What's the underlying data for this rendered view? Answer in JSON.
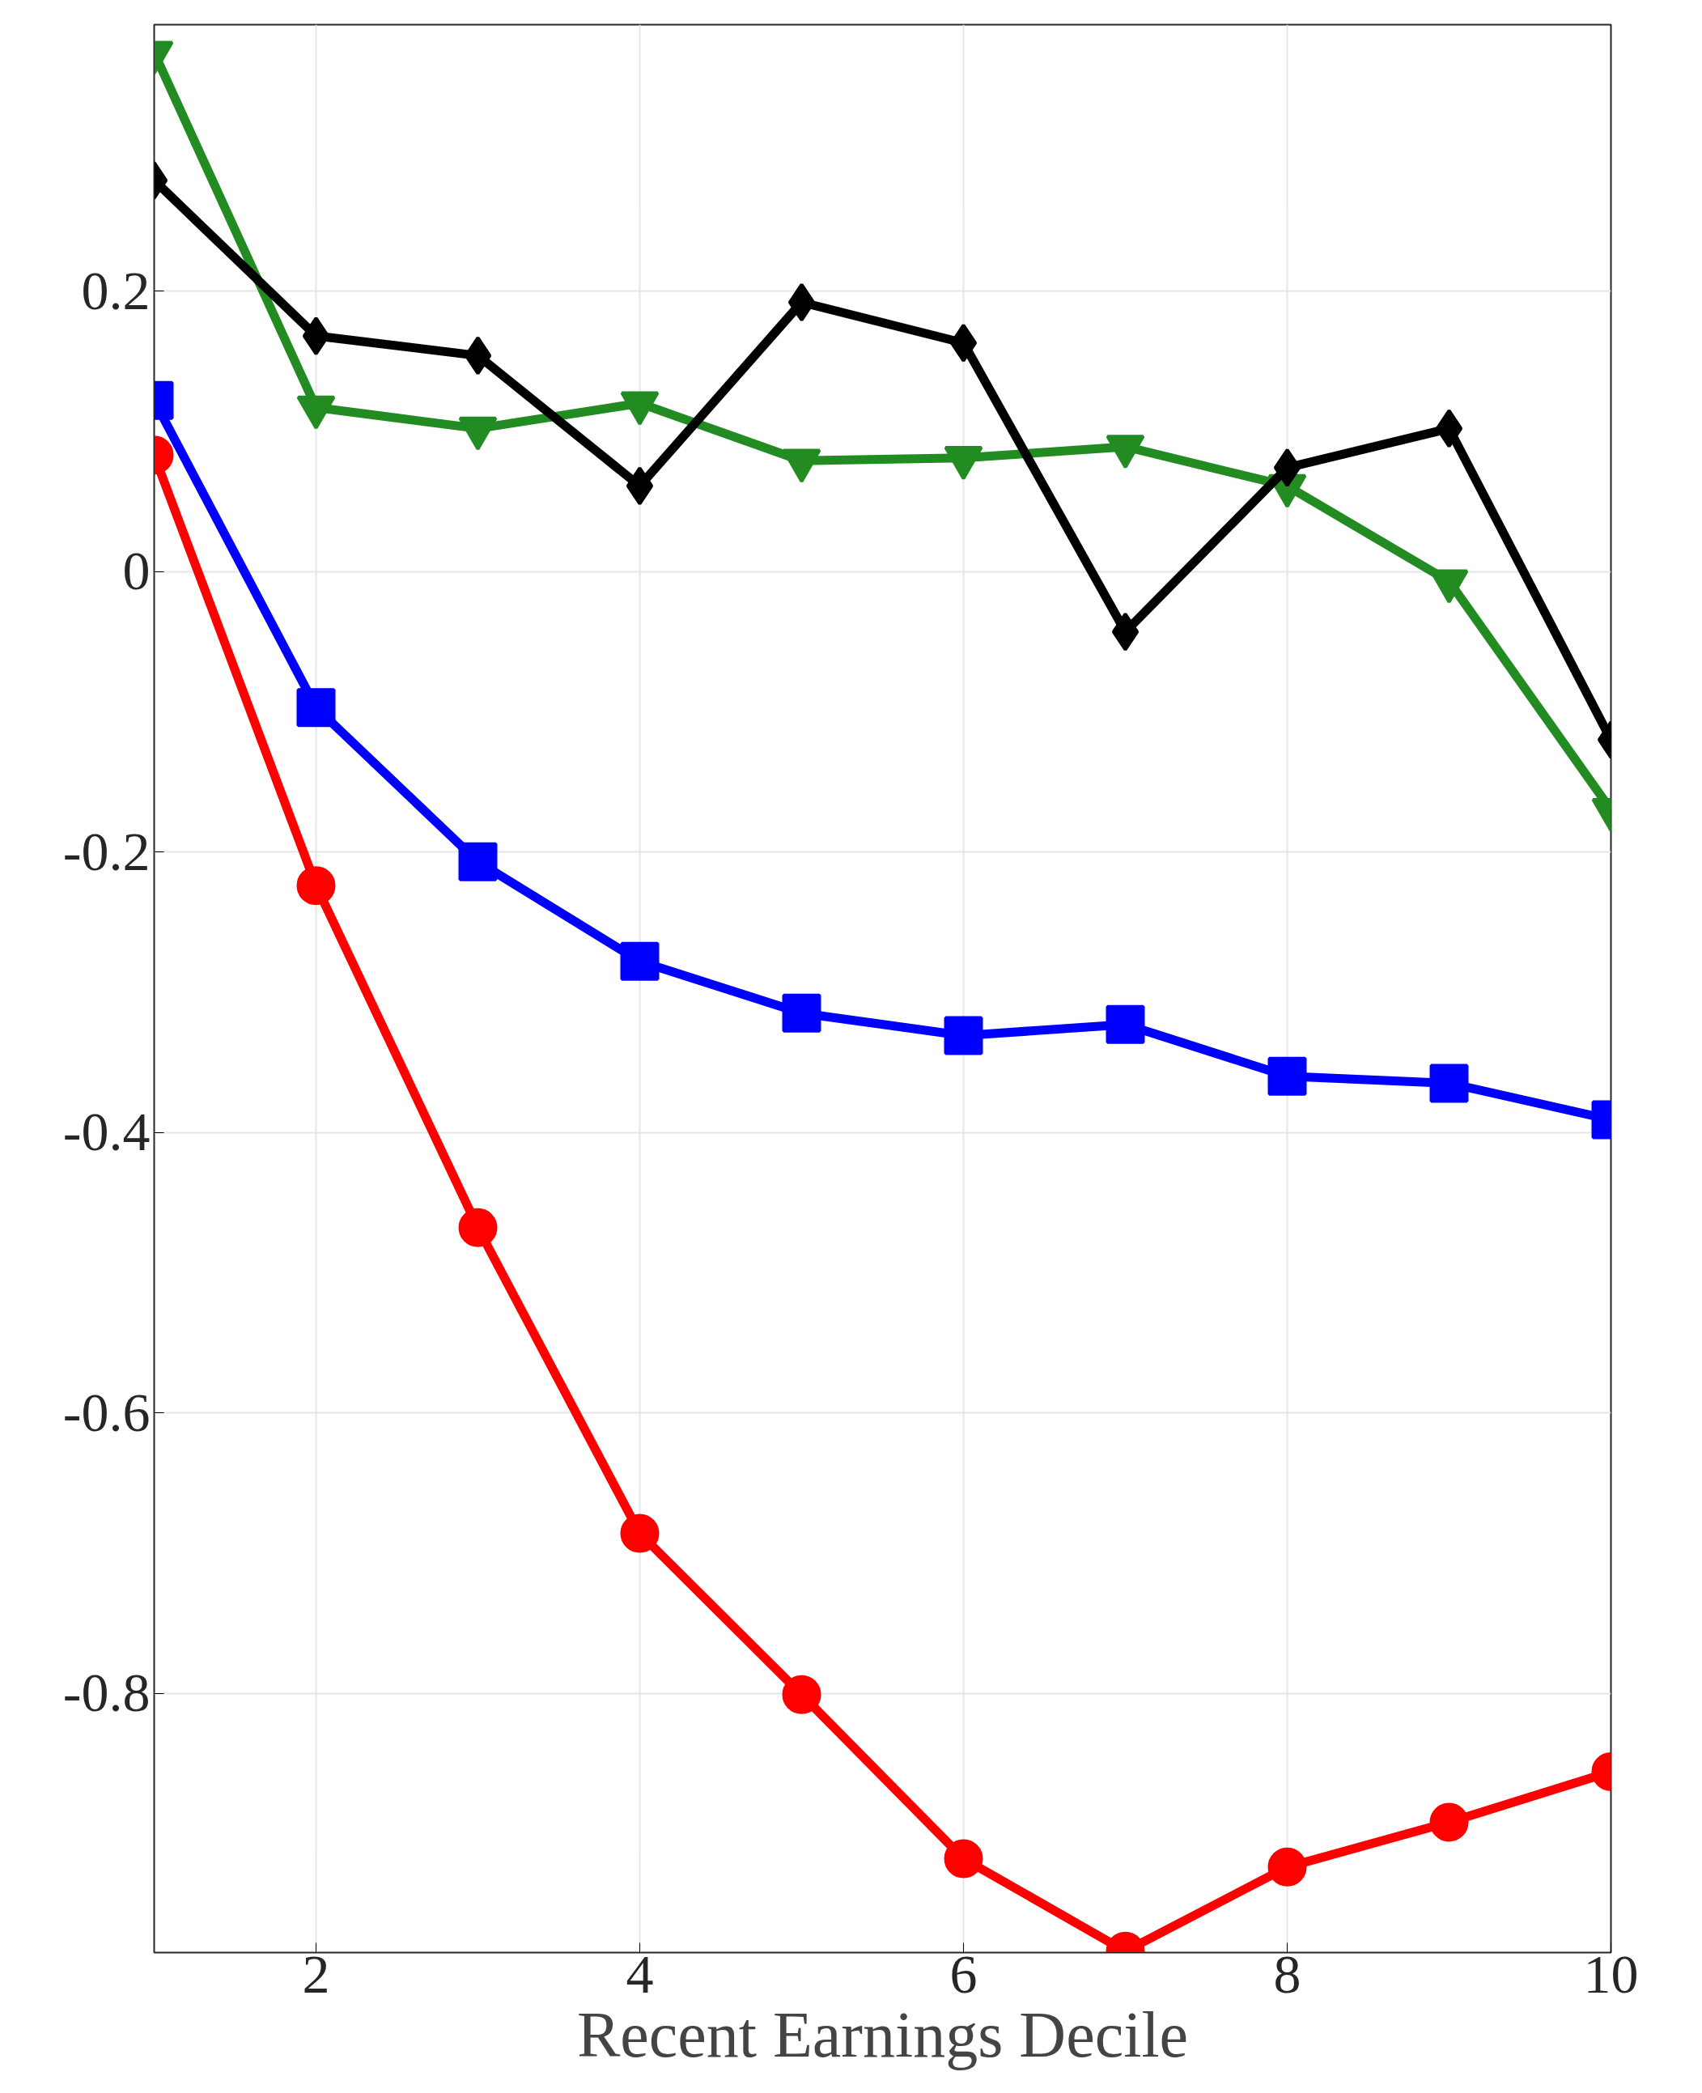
{
  "chart_data": {
    "type": "line",
    "xlabel": "Recent Earnings Decile",
    "x": [
      1,
      2,
      3,
      4,
      5,
      6,
      7,
      8,
      9,
      10
    ],
    "xlim": [
      1,
      10
    ],
    "xticks": [
      2,
      4,
      6,
      8,
      10
    ],
    "ylim": [
      -0.985,
      0.39
    ],
    "yticks": [
      -0.8,
      -0.6,
      -0.4,
      -0.2,
      0,
      0.2
    ],
    "grid": true,
    "line_style": "solid",
    "series": [
      {
        "color": "#ff0000",
        "marker": "circle",
        "values": [
          0.083,
          -0.224,
          -0.468,
          -0.686,
          -0.801,
          -0.918,
          -0.984,
          -0.924,
          -0.892,
          -0.856
        ]
      },
      {
        "color": "#0000ff",
        "marker": "square",
        "values": [
          0.122,
          -0.097,
          -0.207,
          -0.278,
          -0.315,
          -0.331,
          -0.323,
          -0.36,
          -0.365,
          -0.391
        ]
      },
      {
        "color": "#228b22",
        "marker": "triangle",
        "values": [
          0.37,
          0.117,
          0.102,
          0.12,
          0.079,
          0.081,
          0.089,
          0.061,
          -0.007,
          -0.17
        ]
      },
      {
        "color": "#000000",
        "marker": "diamond",
        "values": [
          0.279,
          0.168,
          0.154,
          0.061,
          0.192,
          0.163,
          -0.043,
          0.074,
          0.102,
          -0.12
        ]
      }
    ]
  }
}
